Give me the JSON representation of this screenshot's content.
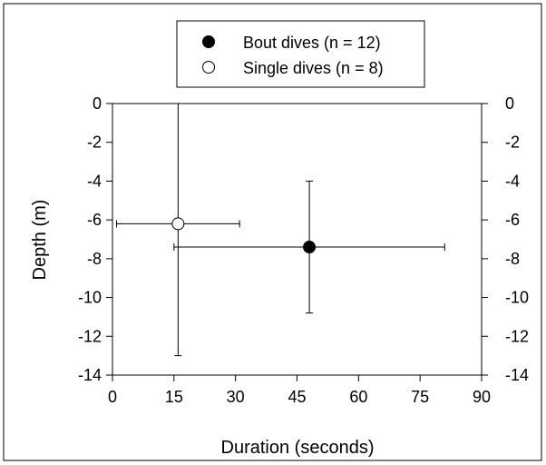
{
  "chart_data": {
    "type": "scatter",
    "title": "",
    "xlabel": "Duration (seconds)",
    "ylabel": "Depth (m)",
    "xlim": [
      0,
      90
    ],
    "ylim": [
      -14,
      0
    ],
    "x_ticks": [
      0,
      15,
      30,
      45,
      60,
      75,
      90
    ],
    "y_ticks": [
      0,
      -2,
      -4,
      -6,
      -8,
      -10,
      -12,
      -14
    ],
    "y_right_axis": true,
    "grid": false,
    "legend_position": "top-center",
    "series": [
      {
        "name": "Bout dives (n = 12)",
        "marker": "filled-circle",
        "color": "#000000",
        "points": [
          {
            "x": 48,
            "y": -7.4,
            "x_err_low": 15,
            "x_err_high": 81,
            "y_err_low": -10.8,
            "y_err_high": -4.0
          }
        ]
      },
      {
        "name": "Single dives (n = 8)",
        "marker": "open-circle",
        "color": "#000000",
        "points": [
          {
            "x": 16,
            "y": -6.2,
            "x_err_low": 1,
            "x_err_high": 31,
            "y_err_low": -13.0,
            "y_err_high": 0
          }
        ]
      }
    ]
  }
}
